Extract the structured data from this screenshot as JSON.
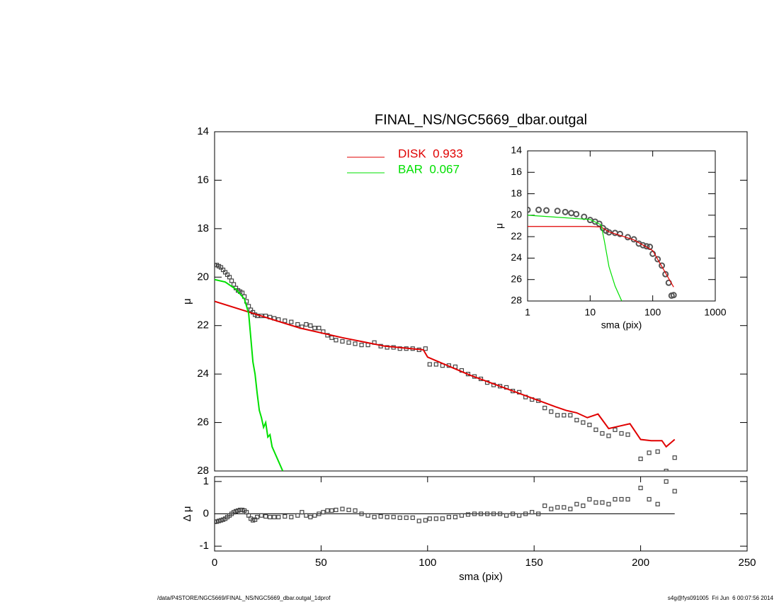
{
  "chart_data": [
    {
      "type": "line",
      "title": "FINAL_NS/NGC5669_dbar.outgal",
      "ylabel": "μ",
      "xlim": [
        0,
        250
      ],
      "ylim": [
        28,
        14
      ],
      "yticks": [
        14,
        16,
        18,
        20,
        22,
        24,
        26,
        28
      ],
      "legend": "top",
      "series": [
        {
          "marker": "square",
          "color": "#444444",
          "x": [
            0,
            1,
            2,
            3,
            4,
            5,
            6,
            7,
            8,
            9,
            10,
            11,
            12,
            13,
            14,
            15,
            16,
            17,
            18,
            19,
            20,
            22,
            24,
            26,
            28,
            30,
            33,
            36,
            39,
            41,
            43,
            45,
            47,
            49,
            51,
            53,
            55,
            57,
            60,
            63,
            66,
            69,
            72,
            75,
            78,
            81,
            84,
            87,
            90,
            93,
            96,
            99,
            101,
            104,
            107,
            110,
            113,
            116,
            119,
            122,
            125,
            128,
            131,
            134,
            137,
            140,
            143,
            146,
            149,
            152,
            155,
            158,
            161,
            164,
            167,
            170,
            173,
            176,
            179,
            182,
            185,
            188,
            191,
            194,
            200,
            204,
            208,
            212,
            216
          ],
          "values": [
            19.5,
            19.5,
            19.55,
            19.6,
            19.7,
            19.8,
            19.9,
            20.0,
            20.15,
            20.3,
            20.45,
            20.55,
            20.6,
            20.65,
            20.8,
            21.0,
            21.2,
            21.35,
            21.45,
            21.55,
            21.6,
            21.6,
            21.6,
            21.65,
            21.7,
            21.75,
            21.8,
            21.85,
            21.95,
            22.05,
            21.95,
            22.0,
            22.1,
            22.1,
            22.25,
            22.4,
            22.5,
            22.6,
            22.65,
            22.7,
            22.75,
            22.8,
            22.8,
            22.7,
            22.85,
            22.9,
            22.9,
            22.95,
            22.95,
            22.95,
            23.0,
            22.95,
            23.6,
            23.6,
            23.65,
            23.65,
            23.7,
            23.85,
            24.0,
            24.1,
            24.2,
            24.35,
            24.45,
            24.5,
            24.55,
            24.7,
            24.75,
            24.95,
            25.05,
            25.1,
            25.4,
            25.55,
            25.7,
            25.7,
            25.7,
            25.9,
            26.0,
            26.1,
            26.3,
            26.45,
            26.55,
            26.3,
            26.45,
            26.5,
            27.5,
            27.25,
            27.2,
            28.0,
            27.45
          ]
        },
        {
          "name": "DISK  0.933",
          "color": "#e00000",
          "x": [
            0,
            20,
            40,
            60,
            80,
            98,
            100,
            120,
            140,
            160,
            165,
            170,
            175,
            180,
            185,
            190,
            195,
            200,
            205,
            210,
            212,
            216
          ],
          "values": [
            21.0,
            21.55,
            22.1,
            22.5,
            22.85,
            23.0,
            23.3,
            24.05,
            24.7,
            25.35,
            25.5,
            25.6,
            25.8,
            25.65,
            26.25,
            26.15,
            26.05,
            26.7,
            26.75,
            26.75,
            27.0,
            26.7
          ]
        },
        {
          "name": "BAR  0.067",
          "color": "#00e000",
          "x": [
            0,
            5,
            10,
            14,
            16,
            17,
            18,
            19,
            20,
            21,
            22,
            23,
            24,
            25,
            26,
            27,
            28,
            30,
            32
          ],
          "values": [
            20.1,
            20.2,
            20.5,
            20.9,
            21.5,
            22.5,
            23.5,
            24.0,
            24.8,
            25.5,
            25.8,
            26.2,
            26.0,
            26.6,
            26.5,
            27.0,
            27.2,
            27.6,
            28.0
          ]
        }
      ]
    },
    {
      "type": "scatter",
      "xlabel": "sma (pix)",
      "ylabel": "Δ μ",
      "xlim": [
        0,
        250
      ],
      "xticks": [
        0,
        50,
        100,
        150,
        200,
        250
      ],
      "ylim": [
        -1.15,
        1.15
      ],
      "yticks": [
        -1,
        0,
        1
      ],
      "series": [
        {
          "marker": "square",
          "color": "#444444",
          "x": [
            0,
            1,
            2,
            3,
            4,
            5,
            6,
            7,
            8,
            9,
            10,
            11,
            12,
            13,
            14,
            15,
            16,
            17,
            18,
            19,
            20,
            22,
            24,
            26,
            28,
            30,
            33,
            36,
            39,
            41,
            43,
            45,
            47,
            49,
            51,
            53,
            55,
            57,
            60,
            63,
            66,
            69,
            72,
            75,
            78,
            81,
            84,
            87,
            90,
            93,
            96,
            99,
            101,
            104,
            107,
            110,
            113,
            116,
            119,
            122,
            125,
            128,
            131,
            134,
            137,
            140,
            143,
            146,
            149,
            152,
            155,
            158,
            161,
            164,
            167,
            170,
            173,
            176,
            179,
            182,
            185,
            188,
            191,
            194,
            200,
            204,
            208,
            212,
            216
          ],
          "values": [
            -0.25,
            -0.24,
            -0.22,
            -0.2,
            -0.18,
            -0.15,
            -0.1,
            -0.05,
            0.0,
            0.05,
            0.08,
            0.1,
            0.12,
            0.12,
            0.1,
            0.05,
            -0.05,
            -0.15,
            -0.2,
            -0.18,
            -0.1,
            -0.05,
            -0.08,
            -0.1,
            -0.1,
            -0.1,
            -0.08,
            -0.1,
            -0.05,
            0.05,
            -0.05,
            -0.1,
            -0.05,
            0.0,
            0.05,
            0.1,
            0.1,
            0.12,
            0.15,
            0.12,
            0.1,
            0.0,
            -0.05,
            -0.1,
            -0.08,
            -0.1,
            -0.1,
            -0.12,
            -0.12,
            -0.12,
            -0.22,
            -0.2,
            -0.15,
            -0.15,
            -0.15,
            -0.1,
            -0.1,
            -0.05,
            -0.02,
            0.0,
            0.0,
            0.0,
            0.0,
            0.0,
            -0.05,
            0.0,
            -0.05,
            0.0,
            0.05,
            0.0,
            0.25,
            0.15,
            0.2,
            0.2,
            0.15,
            0.3,
            0.25,
            0.45,
            0.35,
            0.35,
            0.3,
            0.45,
            0.45,
            0.45,
            0.8,
            0.45,
            0.3,
            1.0,
            0.7
          ]
        }
      ]
    },
    {
      "type": "line",
      "xlabel": "sma (pix)",
      "ylabel": "μ",
      "xscale": "log",
      "xlim": [
        1,
        1000
      ],
      "xticks": [
        1,
        10,
        100,
        1000
      ],
      "ylim": [
        28,
        14
      ],
      "yticks": [
        14,
        16,
        18,
        20,
        22,
        24,
        26,
        28
      ],
      "series": [
        {
          "marker": "circle",
          "color": "#555555",
          "x": [
            1,
            1.5,
            2,
            3,
            4,
            5,
            6,
            8,
            10,
            12,
            14,
            16,
            18,
            20,
            25,
            30,
            40,
            50,
            60,
            70,
            80,
            90,
            100,
            120,
            140,
            160,
            180,
            200,
            216
          ],
          "values": [
            19.5,
            19.5,
            19.55,
            19.6,
            19.7,
            19.8,
            19.9,
            20.15,
            20.45,
            20.6,
            20.8,
            21.2,
            21.45,
            21.6,
            21.65,
            21.75,
            22.05,
            22.25,
            22.65,
            22.8,
            22.9,
            22.95,
            23.6,
            24.1,
            24.7,
            25.5,
            26.3,
            27.5,
            27.45
          ]
        },
        {
          "color": "#e00000",
          "x": [
            1,
            10,
            15,
            20,
            50,
            100,
            216
          ],
          "values": [
            21.05,
            21.05,
            21.1,
            21.55,
            22.3,
            23.3,
            26.7
          ]
        },
        {
          "color": "#00e000",
          "x": [
            1,
            10,
            15,
            17,
            20,
            25,
            32
          ],
          "values": [
            20.0,
            20.4,
            20.9,
            22.5,
            24.8,
            26.6,
            28.0
          ]
        }
      ]
    }
  ],
  "footer": {
    "left": "/data/P4STORE/NGC5669/FINAL_NS/NGC5669_dbar.outgal_1dprof",
    "right": "s4g@fys091005  Fri Jun  6 00:07:56 2014"
  }
}
